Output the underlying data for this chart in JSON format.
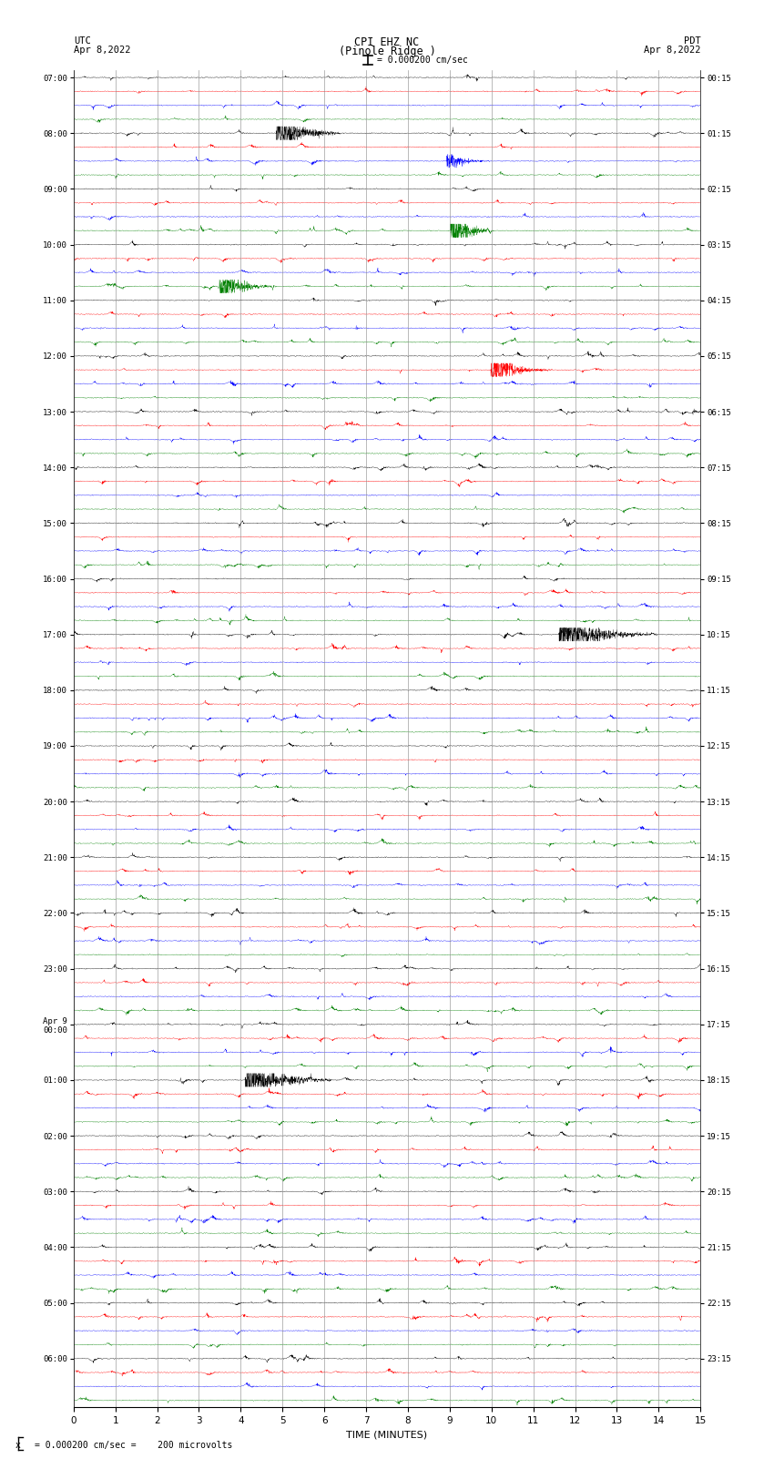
{
  "title_line1": "CPI EHZ NC",
  "title_line2": "(Pinole Ridge )",
  "scale_label": "= 0.000200 cm/sec",
  "scale_label2": "= 0.000200 cm/sec =    200 microvolts",
  "left_label_line1": "UTC",
  "left_label_line2": "Apr 8,2022",
  "right_label_line1": "PDT",
  "right_label_line2": "Apr 8,2022",
  "xlabel": "TIME (MINUTES)",
  "left_times": [
    "07:00",
    "08:00",
    "09:00",
    "10:00",
    "11:00",
    "12:00",
    "13:00",
    "14:00",
    "15:00",
    "16:00",
    "17:00",
    "18:00",
    "19:00",
    "20:00",
    "21:00",
    "22:00",
    "23:00",
    "Apr 9\n00:00",
    "01:00",
    "02:00",
    "03:00",
    "04:00",
    "05:00",
    "06:00"
  ],
  "right_times": [
    "00:15",
    "01:15",
    "02:15",
    "03:15",
    "04:15",
    "05:15",
    "06:15",
    "07:15",
    "08:15",
    "09:15",
    "10:15",
    "11:15",
    "12:15",
    "13:15",
    "14:15",
    "15:15",
    "16:15",
    "17:15",
    "18:15",
    "19:15",
    "20:15",
    "21:15",
    "22:15",
    "23:15"
  ],
  "num_rows": 24,
  "traces_per_row": 4,
  "trace_colors": [
    "black",
    "red",
    "blue",
    "green"
  ],
  "fig_width": 8.5,
  "fig_height": 16.13,
  "bg_color": "white",
  "grid_color": "#888888",
  "minutes": 15,
  "noise_amp": 0.06,
  "seed": 42
}
